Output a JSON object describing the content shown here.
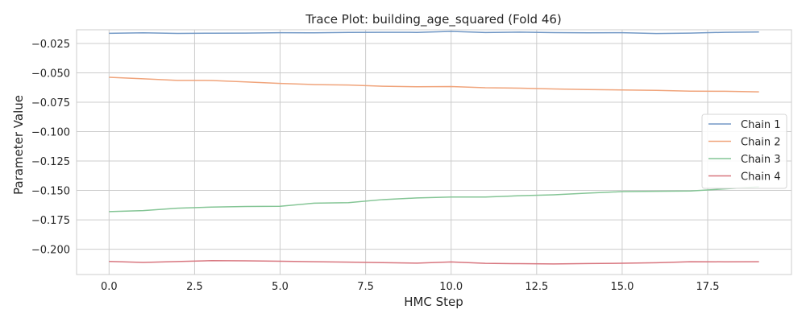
{
  "chart_data": {
    "type": "line",
    "title": "Trace Plot: building_age_squared (Fold 46)",
    "xlabel": "HMC Step",
    "ylabel": "Parameter Value",
    "xlim": [
      -0.95,
      19.95
    ],
    "ylim": [
      -0.2215,
      -0.0134
    ],
    "xticks": [
      0.0,
      2.5,
      5.0,
      7.5,
      10.0,
      12.5,
      15.0,
      17.5
    ],
    "xtick_labels": [
      "0.0",
      "2.5",
      "5.0",
      "7.5",
      "10.0",
      "12.5",
      "15.0",
      "17.5"
    ],
    "yticks": [
      -0.025,
      -0.05,
      -0.075,
      -0.1,
      -0.125,
      -0.15,
      -0.175,
      -0.2
    ],
    "ytick_labels": [
      "−0.025",
      "−0.050",
      "−0.075",
      "−0.100",
      "−0.125",
      "−0.150",
      "−0.175",
      "−0.200"
    ],
    "grid": true,
    "legend_position": "center-right",
    "x": [
      0,
      1,
      2,
      3,
      4,
      5,
      6,
      7,
      8,
      9,
      10,
      11,
      12,
      13,
      14,
      15,
      16,
      17,
      18,
      19
    ],
    "series": [
      {
        "name": "Chain 1",
        "color": "#7399c6",
        "values": [
          -0.0164,
          -0.016,
          -0.0165,
          -0.0163,
          -0.0162,
          -0.0159,
          -0.016,
          -0.0156,
          -0.0155,
          -0.0156,
          -0.0148,
          -0.0157,
          -0.0154,
          -0.0158,
          -0.016,
          -0.0159,
          -0.0166,
          -0.0162,
          -0.0155,
          -0.0153
        ]
      },
      {
        "name": "Chain 2",
        "color": "#f0a47b",
        "values": [
          -0.0538,
          -0.0551,
          -0.0564,
          -0.0565,
          -0.0577,
          -0.059,
          -0.06,
          -0.0604,
          -0.0614,
          -0.0618,
          -0.0617,
          -0.0627,
          -0.063,
          -0.0637,
          -0.0642,
          -0.0646,
          -0.0649,
          -0.0656,
          -0.0657,
          -0.0662
        ]
      },
      {
        "name": "Chain 3",
        "color": "#84c595",
        "values": [
          -0.168,
          -0.1672,
          -0.1651,
          -0.1642,
          -0.1637,
          -0.1635,
          -0.1608,
          -0.1604,
          -0.1578,
          -0.1564,
          -0.1556,
          -0.1556,
          -0.1545,
          -0.1537,
          -0.1523,
          -0.151,
          -0.1507,
          -0.1505,
          -0.1487,
          -0.147
        ]
      },
      {
        "name": "Chain 4",
        "color": "#d8767f",
        "values": [
          -0.2104,
          -0.2112,
          -0.2105,
          -0.2097,
          -0.2099,
          -0.2102,
          -0.2106,
          -0.211,
          -0.2114,
          -0.2118,
          -0.2108,
          -0.212,
          -0.2123,
          -0.2125,
          -0.2122,
          -0.2119,
          -0.2115,
          -0.2106,
          -0.2107,
          -0.2106
        ]
      }
    ]
  }
}
